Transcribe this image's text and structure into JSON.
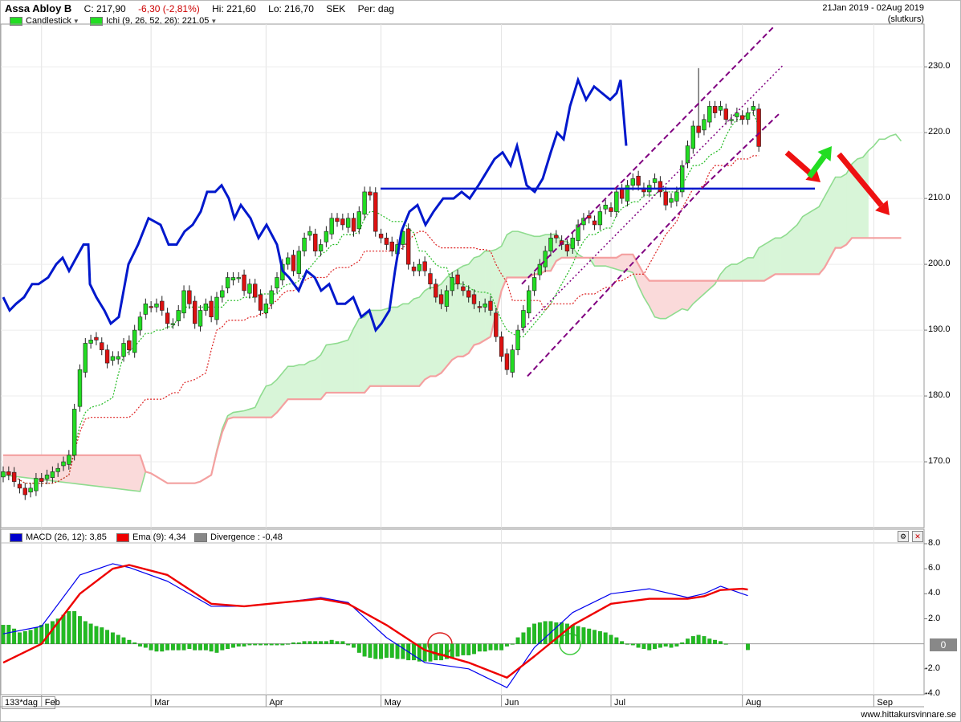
{
  "header": {
    "title": "Assa Abloy B",
    "close": "C: 217,90",
    "change": "-6,30 (-2,81%)",
    "high": "Hi: 221,60",
    "low": "Lo: 216,70",
    "currency": "SEK",
    "period": "Per: dag",
    "date_range": "21Jan 2019 - 02Aug 2019",
    "price_type": "(slutkurs)"
  },
  "legend_main": {
    "candlestick": "Candlestick",
    "ichi": "Ichi (9, 26, 52, 26): 221.05"
  },
  "legend_macd": {
    "macd": "MACD (26, 12): 3,85",
    "ema": "Ema (9): 4,34",
    "divergence": "Divergence : -0,48"
  },
  "colors": {
    "bull": "#22dd22",
    "bear": "#dd1111",
    "macd_line": "#0000ee",
    "ema_line": "#ee0000",
    "hist": "#22bb22",
    "cloud_green": "#d8f5d8",
    "cloud_red": "#fadada",
    "overlay_blue": "#0018cc",
    "channel": "#800080",
    "arrow_red": "#ee1111",
    "arrow_green": "#22dd22"
  },
  "bottom": {
    "period_label": "133*dag",
    "months": [
      "Feb",
      "Mar",
      "Apr",
      "May",
      "Jun",
      "Jul",
      "Aug",
      "Sep"
    ],
    "watermark": "www.hittakursvinnare.se"
  },
  "macd_zero_badge": "0",
  "chart_data": [
    {
      "type": "candlestick",
      "title": "Assa Abloy B",
      "ylim": [
        160,
        236
      ],
      "y_ticks": [
        "170.0",
        "180.0",
        "190.0",
        "200.0",
        "210.0",
        "220.0",
        "230.0"
      ],
      "y_tick_values": [
        170,
        180,
        190,
        200,
        210,
        220,
        230
      ],
      "x_labels": [
        "Feb",
        "Mar",
        "Apr",
        "May",
        "Jun",
        "Jul",
        "Aug",
        "Sep"
      ],
      "x_label_index": [
        7,
        27,
        48,
        69,
        91,
        111,
        135,
        159
      ],
      "n_bars": 139,
      "close": [
        168.5,
        168.0,
        167.0,
        166.0,
        165.0,
        166.0,
        167.5,
        167.0,
        168.0,
        168.5,
        169.0,
        170.0,
        171.0,
        178.0,
        184.0,
        188.0,
        188.5,
        188.5,
        187.0,
        185.0,
        186.0,
        186.0,
        188.0,
        187.0,
        190.0,
        192.0,
        194.0,
        193.5,
        194.0,
        193.0,
        191.0,
        191.0,
        193.0,
        196.0,
        194.0,
        191.0,
        193.0,
        194.0,
        192.0,
        195.0,
        196.0,
        198.0,
        198.0,
        198.0,
        196.0,
        197.0,
        195.0,
        193.0,
        194.0,
        196.0,
        198.0,
        200.0,
        201.0,
        199.0,
        202.0,
        204.0,
        205.0,
        202.0,
        203.0,
        205.0,
        207.0,
        206.5,
        206.0,
        207.0,
        205.0,
        208.0,
        211.0,
        210.5,
        205.0,
        204.0,
        203.0,
        202.0,
        203.0,
        205.0,
        200.0,
        199.0,
        200.0,
        199.0,
        197.0,
        195.0,
        194.0,
        196.0,
        198.0,
        197.0,
        196.0,
        195.0,
        194.0,
        193.5,
        194.0,
        193.0,
        189.0,
        186.0,
        184.0,
        187.0,
        190.0,
        193.0,
        196.0,
        198.0,
        200.0,
        202.0,
        204.0,
        204.0,
        203.0,
        202.0,
        204.0,
        206.0,
        207.0,
        207.0,
        206.0,
        208.0,
        209.0,
        208.0,
        211.0,
        210.0,
        212.0,
        213.0,
        212.0,
        211.0,
        212.0,
        213.0,
        211.0,
        209.0,
        210.0,
        211.0,
        215.0,
        218.0,
        221.0,
        220.0,
        222.0,
        224.0,
        223.0,
        224.0,
        222.0,
        222.0,
        223.0,
        222.0,
        223.0,
        224.0,
        217.9
      ],
      "ichimoku": {
        "tenkan_approx": "green dotted line",
        "kijun_approx": "red dotted line",
        "senkou_a_approx": "green cloud edge",
        "senkou_b_approx": "red cloud edge"
      },
      "annotations": {
        "horizontal_level": 211.5,
        "channel": "rising purple dashed channel from about 183 (late May) to about 236 (late July)"
      }
    },
    {
      "type": "bar",
      "title": "MACD (26, 12): 3,85",
      "ylim": [
        -4.0,
        8.0
      ],
      "y_ticks": [
        "8.0",
        "6.0",
        "4.0",
        "2.0",
        "-2.0",
        "-4.0"
      ],
      "y_tick_values": [
        8,
        6,
        4,
        2,
        -2,
        -4
      ],
      "series": [
        {
          "name": "MACD (26, 12): 3,85",
          "points": [
            [
              0,
              0.8
            ],
            [
              7,
              1.4
            ],
            [
              14,
              5.5
            ],
            [
              20,
              6.4
            ],
            [
              23,
              6.1
            ],
            [
              30,
              5.0
            ],
            [
              38,
              3.0
            ],
            [
              44,
              3.0
            ],
            [
              51,
              3.3
            ],
            [
              58,
              3.7
            ],
            [
              63,
              3.3
            ],
            [
              70,
              0.5
            ],
            [
              77,
              -1.5
            ],
            [
              85,
              -2.0
            ],
            [
              92,
              -3.5
            ],
            [
              97,
              -0.3
            ],
            [
              104,
              2.5
            ],
            [
              111,
              4.0
            ],
            [
              118,
              4.4
            ],
            [
              125,
              3.7
            ],
            [
              128,
              4.0
            ],
            [
              131,
              4.6
            ],
            [
              135,
              4.0
            ],
            [
              136,
              3.85
            ]
          ]
        },
        {
          "name": "Ema (9): 4,34",
          "points": [
            [
              0,
              -1.5
            ],
            [
              7,
              0.0
            ],
            [
              14,
              4.0
            ],
            [
              20,
              6.0
            ],
            [
              23,
              6.3
            ],
            [
              30,
              5.5
            ],
            [
              38,
              3.2
            ],
            [
              44,
              3.0
            ],
            [
              51,
              3.3
            ],
            [
              58,
              3.6
            ],
            [
              63,
              3.2
            ],
            [
              70,
              1.5
            ],
            [
              77,
              -0.5
            ],
            [
              85,
              -1.5
            ],
            [
              92,
              -2.7
            ],
            [
              97,
              -1.0
            ],
            [
              104,
              1.5
            ],
            [
              111,
              3.2
            ],
            [
              118,
              3.6
            ],
            [
              125,
              3.6
            ],
            [
              128,
              3.8
            ],
            [
              131,
              4.3
            ],
            [
              135,
              4.4
            ],
            [
              136,
              4.34
            ]
          ]
        },
        {
          "name": "Divergence : -0,48",
          "values": [
            1.5,
            1.5,
            1.2,
            0.9,
            1.0,
            1.1,
            1.3,
            1.5,
            1.6,
            1.8,
            2.0,
            2.3,
            2.6,
            2.6,
            2.2,
            1.8,
            1.6,
            1.4,
            1.3,
            1.1,
            0.9,
            0.7,
            0.5,
            0.3,
            0.1,
            -0.2,
            -0.3,
            -0.5,
            -0.6,
            -0.6,
            -0.5,
            -0.5,
            -0.5,
            -0.5,
            -0.4,
            -0.5,
            -0.5,
            -0.5,
            -0.6,
            -0.7,
            -0.5,
            -0.4,
            -0.3,
            -0.2,
            -0.2,
            -0.1,
            -0.1,
            -0.1,
            -0.1,
            -0.1,
            -0.1,
            -0.1,
            0.0,
            0.1,
            0.1,
            0.2,
            0.2,
            0.2,
            0.2,
            0.2,
            0.3,
            0.2,
            0.2,
            -0.1,
            -0.3,
            -0.7,
            -1.0,
            -1.1,
            -1.2,
            -1.2,
            -1.1,
            -1.1,
            -1.2,
            -1.2,
            -1.3,
            -1.3,
            -1.4,
            -1.4,
            -1.4,
            -1.3,
            -1.3,
            -1.2,
            -1.1,
            -1.0,
            -0.9,
            -0.9,
            -0.8,
            -0.6,
            -0.6,
            -0.5,
            -0.5,
            -0.5,
            -0.2,
            0.0,
            0.5,
            0.9,
            1.3,
            1.6,
            1.7,
            1.8,
            1.8,
            1.7,
            1.7,
            1.6,
            1.5,
            1.4,
            1.3,
            1.2,
            1.1,
            1.0,
            0.9,
            0.7,
            0.5,
            0.2,
            0.0,
            -0.1,
            -0.3,
            -0.4,
            -0.5,
            -0.4,
            -0.3,
            -0.2,
            -0.3,
            -0.2,
            0.1,
            0.4,
            0.6,
            0.7,
            0.6,
            0.4,
            0.3,
            0.2,
            0.0,
            null,
            null,
            null,
            -0.48
          ]
        }
      ]
    }
  ]
}
